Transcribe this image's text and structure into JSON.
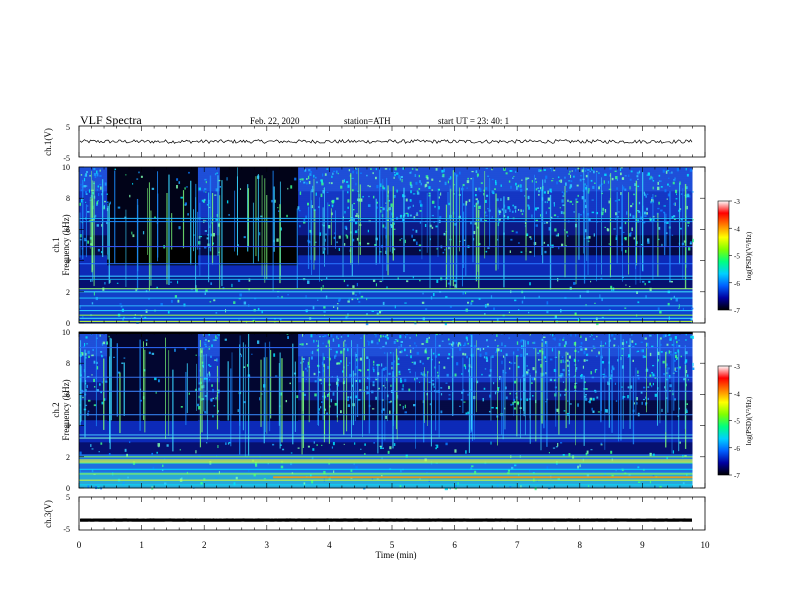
{
  "header": {
    "title": "VLF  Spectra",
    "date": "Feb. 22, 2020",
    "station": "station=ATH",
    "start": "start  UT  =    23: 40: 1"
  },
  "chart_data": [
    {
      "type": "line",
      "panel": "ch1-waveform",
      "ylabel": "ch.1(V)",
      "ylim": [
        -5,
        5
      ],
      "yticks": [
        "5",
        "-5"
      ],
      "xlim": [
        0,
        10
      ],
      "baseline": 0,
      "amplitude": 0.6
    },
    {
      "type": "heatmap",
      "panel": "ch1-spectrogram",
      "ylabel_lines": [
        "ch.1",
        "Frequency  (kHz)"
      ],
      "ylim": [
        0,
        10
      ],
      "yticks": [
        "0",
        "2",
        "4",
        "6",
        "8",
        "10"
      ],
      "xlim": [
        0,
        10
      ],
      "data_end_min": 9.8,
      "colorbar": {
        "label": "log(PSD)(V²/Hz)",
        "range": [
          -7,
          -3
        ],
        "ticks": [
          "-3",
          "-4",
          "-5",
          "-6",
          "-7"
        ],
        "colors": [
          "#000000",
          "#0000a0",
          "#0060ff",
          "#00d0ff",
          "#00ff80",
          "#80ff00",
          "#ffff00",
          "#ff8000",
          "#ff0000",
          "#ffffff"
        ]
      },
      "quiet_intervals_min": [
        [
          0.45,
          1.9
        ],
        [
          2.25,
          3.5
        ]
      ]
    },
    {
      "type": "heatmap",
      "panel": "ch2-spectrogram",
      "ylabel_lines": [
        "ch.2",
        "Frequency  (kHz)"
      ],
      "ylim": [
        0,
        10
      ],
      "yticks": [
        "0",
        "2",
        "4",
        "6",
        "8",
        "10"
      ],
      "xlim": [
        0,
        10
      ],
      "data_end_min": 9.8,
      "colorbar": {
        "label": "log(PSD)(V²/Hz)",
        "range": [
          -7,
          -3
        ],
        "ticks": [
          "-3",
          "-4",
          "-5",
          "-6",
          "-7"
        ],
        "colors": [
          "#000000",
          "#0000a0",
          "#0060ff",
          "#00d0ff",
          "#00ff80",
          "#80ff00",
          "#ffff00",
          "#ff8000",
          "#ff0000",
          "#ffffff"
        ]
      },
      "quiet_intervals_min": [
        [
          0.45,
          1.9
        ],
        [
          2.25,
          3.5
        ]
      ]
    },
    {
      "type": "line",
      "panel": "ch3-waveform",
      "ylabel": "ch.3(V)",
      "ylim": [
        -5,
        5
      ],
      "yticks": [
        "5",
        "-5"
      ],
      "xlim": [
        0,
        10
      ],
      "baseline": -2,
      "amplitude": 0.05
    }
  ],
  "xaxis": {
    "label": "Time  (min)",
    "ticks": [
      "0",
      "1",
      "2",
      "3",
      "4",
      "5",
      "6",
      "7",
      "8",
      "9",
      "10"
    ]
  }
}
